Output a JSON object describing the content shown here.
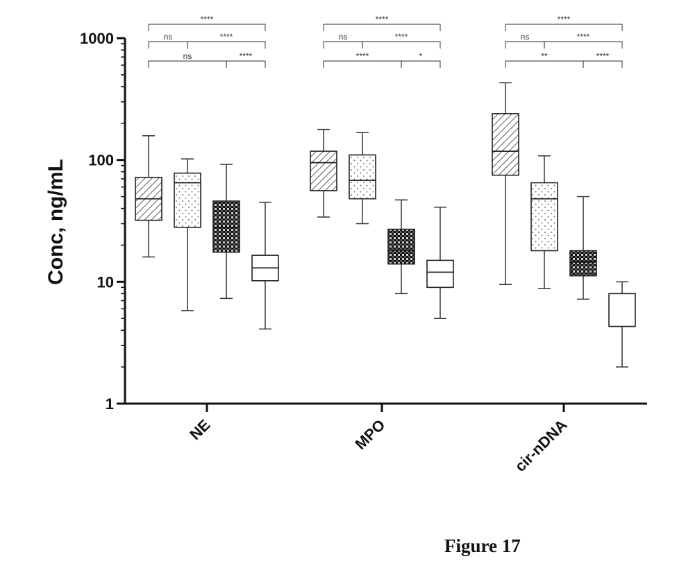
{
  "caption": "Figure 17",
  "chart_data": {
    "type": "box",
    "ylabel": "Conc, ng/mL",
    "yscale": "log",
    "ylim": [
      1,
      1000
    ],
    "yticks": [
      {
        "value": 1,
        "label": "1"
      },
      {
        "value": 10,
        "label": "10"
      },
      {
        "value": 100,
        "label": "100"
      },
      {
        "value": 1000,
        "label": "1000"
      }
    ],
    "categories": [
      "NE",
      "MPO",
      "cir-nDNA"
    ],
    "box_fills": [
      "diagonal-hatch",
      "dots",
      "crosshatch",
      "open"
    ],
    "groups": [
      {
        "name": "NE",
        "boxes": [
          {
            "min": 16,
            "q1": 32,
            "median": 48,
            "q3": 72,
            "max": 158
          },
          {
            "min": 5.8,
            "q1": 28,
            "median": 65,
            "q3": 78,
            "max": 102
          },
          {
            "min": 7.3,
            "q1": 17.5,
            "median": 28,
            "q3": 46,
            "max": 92
          },
          {
            "min": 4.1,
            "q1": 10.2,
            "median": 13,
            "q3": 16.5,
            "max": 45
          }
        ],
        "comparisons": [
          {
            "from": 0,
            "to": 3,
            "level": 0,
            "label": "****"
          },
          {
            "from": 0,
            "to": 1,
            "level": 1,
            "label": "ns"
          },
          {
            "from": 1,
            "to": 3,
            "level": 1,
            "label": "****"
          },
          {
            "from": 0,
            "to": 2,
            "level": 2,
            "label": "ns"
          },
          {
            "from": 2,
            "to": 3,
            "level": 2,
            "label": "****"
          }
        ]
      },
      {
        "name": "MPO",
        "boxes": [
          {
            "min": 34,
            "q1": 56,
            "median": 95,
            "q3": 118,
            "max": 178
          },
          {
            "min": 30,
            "q1": 48,
            "median": 68,
            "q3": 110,
            "max": 168
          },
          {
            "min": 8,
            "q1": 14,
            "median": 18,
            "q3": 27,
            "max": 47
          },
          {
            "min": 5,
            "q1": 9,
            "median": 12,
            "q3": 15,
            "max": 41
          }
        ],
        "comparisons": [
          {
            "from": 0,
            "to": 3,
            "level": 0,
            "label": "****"
          },
          {
            "from": 0,
            "to": 1,
            "level": 1,
            "label": "ns"
          },
          {
            "from": 1,
            "to": 3,
            "level": 1,
            "label": "****"
          },
          {
            "from": 0,
            "to": 2,
            "level": 2,
            "label": "****"
          },
          {
            "from": 2,
            "to": 3,
            "level": 2,
            "label": "*"
          }
        ]
      },
      {
        "name": "cir-nDNA",
        "boxes": [
          {
            "min": 9.5,
            "q1": 75,
            "median": 118,
            "q3": 240,
            "max": 430
          },
          {
            "min": 8.8,
            "q1": 18,
            "median": 48,
            "q3": 65,
            "max": 108
          },
          {
            "min": 7.2,
            "q1": 11.2,
            "median": 14.5,
            "q3": 18,
            "max": 50
          },
          {
            "min": 2,
            "q1": 4.3,
            "median": 4.3,
            "q3": 8,
            "max": 10
          }
        ],
        "comparisons": [
          {
            "from": 0,
            "to": 3,
            "level": 0,
            "label": "****"
          },
          {
            "from": 0,
            "to": 1,
            "level": 1,
            "label": "ns"
          },
          {
            "from": 1,
            "to": 3,
            "level": 1,
            "label": "****"
          },
          {
            "from": 0,
            "to": 2,
            "level": 2,
            "label": "**"
          },
          {
            "from": 2,
            "to": 3,
            "level": 2,
            "label": "****"
          }
        ]
      }
    ]
  }
}
